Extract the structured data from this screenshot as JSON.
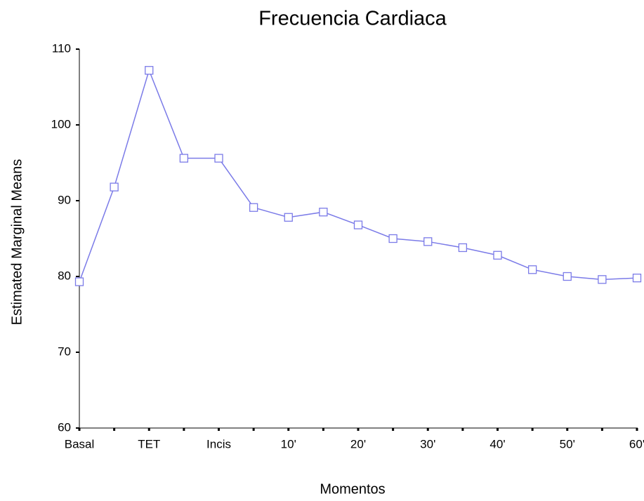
{
  "chart_data": {
    "type": "line",
    "title": "Frecuencia Cardiaca",
    "x_label": "Momentos",
    "y_label": "Estimated Marginal Means",
    "categories": [
      "Basal",
      null,
      "TET",
      null,
      "Incis",
      null,
      "10'",
      null,
      "20'",
      null,
      "30'",
      null,
      "40'",
      null,
      "50'",
      null,
      "60'"
    ],
    "series": [
      {
        "name": "Frecuencia Cardiaca",
        "color": "#7b7be8",
        "values": [
          79.3,
          91.8,
          107.2,
          95.6,
          95.6,
          89.1,
          87.8,
          88.5,
          86.8,
          85.0,
          84.6,
          83.8,
          82.8,
          80.9,
          80.0,
          79.6,
          79.8
        ]
      }
    ],
    "ylim": [
      60,
      110
    ],
    "yticks": [
      60,
      70,
      80,
      90,
      100,
      110
    ],
    "grid": false
  }
}
